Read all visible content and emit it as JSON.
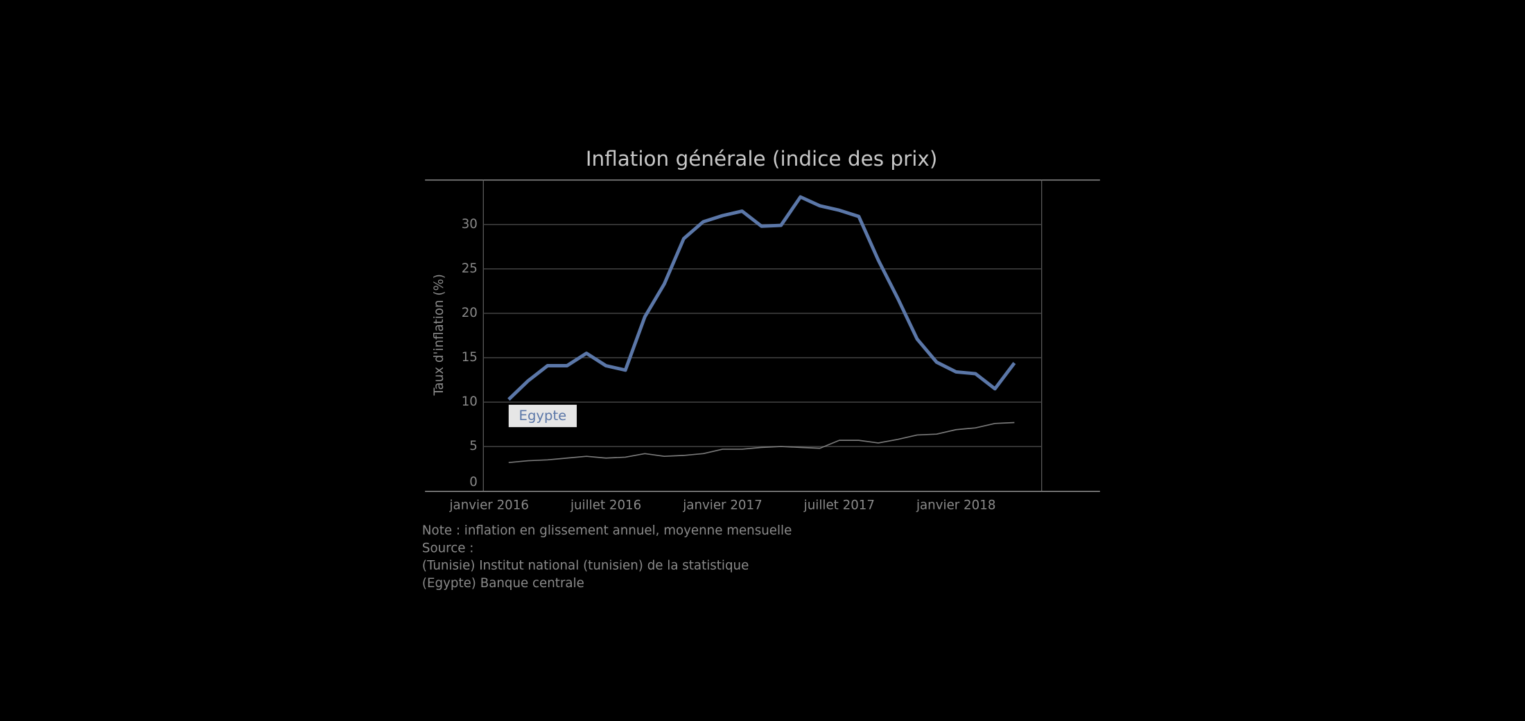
{
  "chart_data": {
    "type": "line",
    "title": "Inflation générale (indice des prix)",
    "y_label": "Taux d'inflation (%)",
    "categories": [
      "janvier 2016",
      null,
      null,
      null,
      null,
      null,
      "juillet 2016",
      null,
      null,
      null,
      null,
      null,
      "janvier 2017",
      null,
      null,
      null,
      null,
      null,
      "juillet 2017",
      null,
      null,
      null,
      null,
      null,
      "janvier 2018",
      null,
      null
    ],
    "series": [
      {
        "name": "Egypte",
        "color": "#5b77a8",
        "values": [
          10.3,
          12.4,
          14.1,
          14.1,
          15.5,
          14.1,
          13.6,
          19.6,
          23.3,
          28.4,
          30.3,
          31.0,
          31.5,
          29.8,
          29.9,
          33.1,
          32.1,
          31.6,
          30.9,
          26.0,
          21.7,
          17.1,
          14.5,
          13.4,
          13.2,
          11.5,
          14.4
        ]
      },
      {
        "color": "#7a7a7a",
        "values": [
          3.2,
          3.4,
          3.5,
          3.7,
          3.9,
          3.7,
          3.8,
          4.2,
          3.9,
          4.0,
          4.2,
          4.7,
          4.7,
          4.9,
          5.0,
          4.9,
          4.8,
          5.7,
          5.7,
          5.4,
          5.8,
          6.3,
          6.4,
          6.9,
          7.1,
          7.6,
          7.7
        ]
      }
    ],
    "ylim": [
      0,
      35
    ],
    "yticks": [
      0,
      5,
      10,
      15,
      20,
      25,
      30
    ],
    "grid": true,
    "notes": [
      "Note : inflation en glissement annuel, moyenne mensuelle",
      "Source :",
      "(Tunisie) Institut national (tunisien) de la statistique",
      "(Egypte) Banque centrale"
    ]
  }
}
